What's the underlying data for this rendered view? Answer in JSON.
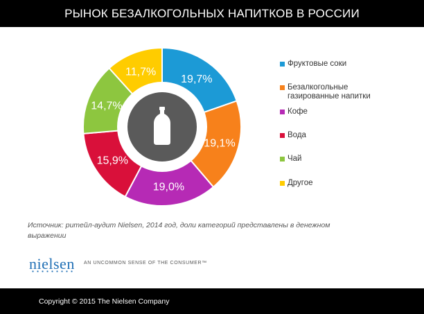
{
  "header": {
    "title": "РЫНОК БЕЗАЛКОГОЛЬНЫХ НАПИТКОВ В РОССИИ"
  },
  "chart_data": {
    "type": "pie",
    "style": "donut",
    "title": "РЫНОК БЕЗАЛКОГОЛЬНЫХ НАПИТКОВ В РОССИИ",
    "unit": "%",
    "categories": [
      "Фруктовые соки",
      "Безалкогольные газированные напитки",
      "Кофе",
      "Вода",
      "Чай",
      "Другое"
    ],
    "values": [
      19.7,
      19.1,
      19.0,
      15.9,
      14.7,
      11.7
    ],
    "data_labels": [
      "19,7%",
      "19,1%",
      "19,0%",
      "15,9%",
      "14,7%",
      "11,7%"
    ],
    "colors": [
      "#1c9ad6",
      "#f7811b",
      "#b62ab5",
      "#d9103a",
      "#8dc63f",
      "#ffcc00"
    ],
    "center_icon": "bottle-icon",
    "legend_position": "right"
  },
  "legend": {
    "items": [
      {
        "label_lines": [
          "Фруктовые соки"
        ]
      },
      {
        "label_lines": [
          "Безалкогольные",
          "газированные напитки"
        ]
      },
      {
        "label_lines": [
          "Кофе"
        ]
      },
      {
        "label_lines": [
          "Вода"
        ]
      },
      {
        "label_lines": [
          "Чай"
        ]
      },
      {
        "label_lines": [
          "Другое"
        ]
      }
    ]
  },
  "source": {
    "text": "Источник: ритейл-аудит Nielsen, 2014 год, доли категорий представлены в денежном выражении"
  },
  "logo": {
    "text": "nielsen",
    "tagline": "AN UNCOMMON SENSE OF THE CONSUMER™"
  },
  "footer": {
    "copyright": "Copyright © 2015 The Nielsen Company"
  }
}
